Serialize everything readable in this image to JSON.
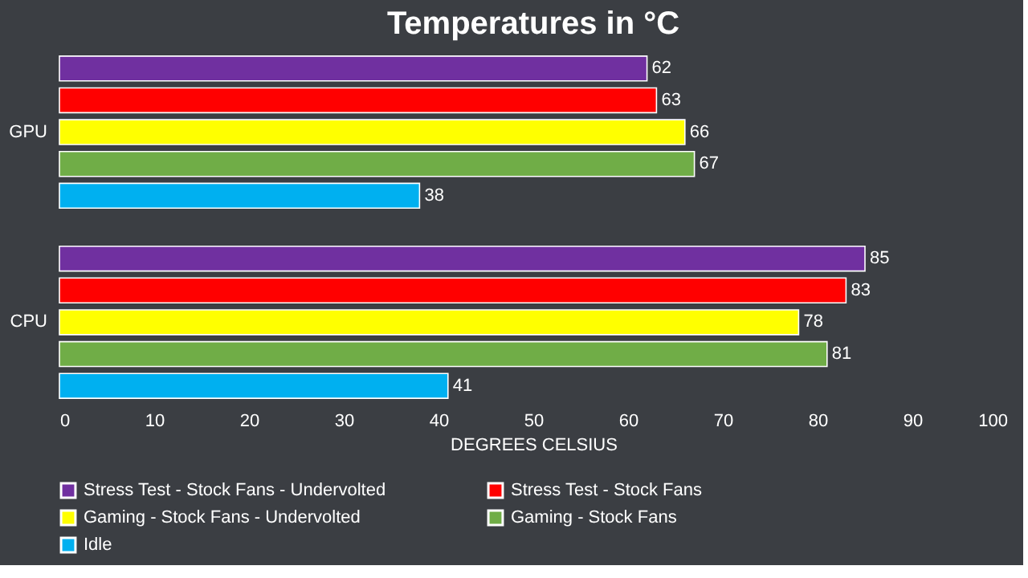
{
  "chart_data": {
    "type": "bar",
    "orientation": "horizontal",
    "title": "Temperatures in °C",
    "xlabel": "DEGREES CELSIUS",
    "categories": [
      "GPU",
      "CPU"
    ],
    "series": [
      {
        "name": "Stress Test - Stock Fans - Undervolted",
        "color": "#7030a0",
        "values": [
          62,
          85
        ]
      },
      {
        "name": "Stress Test - Stock Fans",
        "color": "#ff0000",
        "values": [
          63,
          83
        ]
      },
      {
        "name": "Gaming - Stock Fans - Undervolted",
        "color": "#ffff00",
        "values": [
          66,
          78
        ]
      },
      {
        "name": "Gaming - Stock Fans",
        "color": "#70ad47",
        "values": [
          67,
          81
        ]
      },
      {
        "name": "Idle",
        "color": "#00b0f0",
        "values": [
          38,
          41
        ]
      }
    ],
    "xlim": [
      0,
      100
    ],
    "xticks": [
      0,
      10,
      20,
      30,
      40,
      50,
      60,
      70,
      80,
      90,
      100
    ],
    "data_labels": true,
    "grid": false,
    "legend": "bottom"
  }
}
